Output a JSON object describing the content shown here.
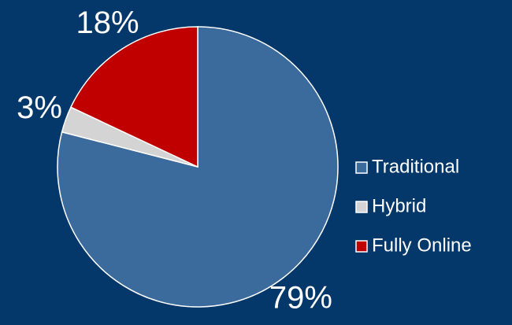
{
  "chart_data": {
    "type": "pie",
    "categories": [
      "Traditional",
      "Hybrid",
      "Fully Online"
    ],
    "values": [
      79,
      3,
      18
    ],
    "value_labels": [
      "79%",
      "3%",
      "18%"
    ],
    "colors": [
      "#3b6a9c",
      "#d4d4d4",
      "#c00000"
    ]
  }
}
